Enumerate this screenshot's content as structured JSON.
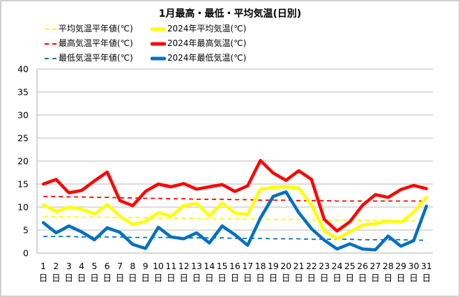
{
  "chart_data": {
    "type": "line",
    "title": "1月最高・最低・平均気温(日別)",
    "xlabel": "",
    "ylabel": "",
    "ylim": [
      0,
      40
    ],
    "yticks": [
      "0",
      "5",
      "10",
      "15",
      "20",
      "25",
      "30",
      "35",
      "40"
    ],
    "ytick_values": [
      0,
      5,
      10,
      15,
      20,
      25,
      30,
      35,
      40
    ],
    "grid": true,
    "legend_position": "top-left",
    "categories": [
      "1",
      "2",
      "3",
      "4",
      "5",
      "6",
      "7",
      "8",
      "9",
      "10",
      "11",
      "12",
      "13",
      "14",
      "15",
      "16",
      "17",
      "18",
      "19",
      "20",
      "21",
      "22",
      "23",
      "24",
      "25",
      "26",
      "27",
      "28",
      "29",
      "30",
      "31"
    ],
    "category_suffix": "日",
    "series": [
      {
        "name": "平均気温平年値(℃)",
        "style": "dashed",
        "color": "#FFFF00",
        "values": [
          7.9,
          7.9,
          7.9,
          7.8,
          7.8,
          7.8,
          7.7,
          7.7,
          7.7,
          7.6,
          7.6,
          7.6,
          7.5,
          7.5,
          7.5,
          7.4,
          7.4,
          7.4,
          7.3,
          7.3,
          7.3,
          7.2,
          7.2,
          7.2,
          7.1,
          7.1,
          7.1,
          7.1,
          7.0,
          7.0,
          7.0
        ]
      },
      {
        "name": "2024年平均気温(℃)",
        "style": "solid",
        "color": "#FFFF00",
        "values": [
          10.5,
          9.0,
          10.0,
          9.5,
          8.5,
          10.5,
          8.0,
          6.2,
          6.9,
          8.8,
          8.0,
          10.3,
          10.8,
          8.1,
          10.9,
          8.7,
          8.4,
          13.9,
          14.3,
          14.4,
          14.1,
          10.4,
          4.8,
          3.1,
          4.6,
          6.1,
          6.4,
          7.0,
          6.7,
          8.9,
          12.1
        ]
      },
      {
        "name": "最高気温平年値(℃)",
        "style": "dashed",
        "color": "#FF0000",
        "values": [
          12.3,
          12.3,
          12.2,
          12.2,
          12.1,
          12.1,
          12.0,
          12.0,
          11.9,
          11.9,
          11.8,
          11.8,
          11.7,
          11.7,
          11.7,
          11.6,
          11.6,
          11.5,
          11.5,
          11.5,
          11.4,
          11.4,
          11.4,
          11.3,
          11.3,
          11.3,
          11.3,
          11.3,
          11.3,
          11.3,
          11.3
        ]
      },
      {
        "name": "2024年最高気温(℃)",
        "style": "solid",
        "color": "#FF0000",
        "values": [
          15.0,
          16.0,
          13.1,
          13.6,
          15.7,
          17.6,
          11.4,
          10.3,
          13.4,
          15.0,
          14.4,
          15.1,
          13.9,
          14.4,
          14.9,
          13.4,
          14.6,
          20.1,
          17.4,
          15.8,
          17.9,
          16.0,
          7.3,
          4.8,
          6.8,
          10.4,
          12.7,
          12.1,
          13.8,
          14.7,
          14.0
        ]
      },
      {
        "name": "最低気温平年値(℃)",
        "style": "dashed",
        "color": "#0070C0",
        "values": [
          3.6,
          3.6,
          3.6,
          3.5,
          3.5,
          3.5,
          3.5,
          3.4,
          3.4,
          3.4,
          3.4,
          3.3,
          3.3,
          3.3,
          3.3,
          3.2,
          3.2,
          3.2,
          3.1,
          3.1,
          3.1,
          3.0,
          3.0,
          3.0,
          3.0,
          2.9,
          2.9,
          2.9,
          2.9,
          2.8,
          2.8
        ]
      },
      {
        "name": "2024年最低気温(℃)",
        "style": "solid",
        "color": "#0070C0",
        "values": [
          6.6,
          4.4,
          5.9,
          4.6,
          2.9,
          5.5,
          4.5,
          1.9,
          1.0,
          5.6,
          3.5,
          3.1,
          4.4,
          2.2,
          5.9,
          4.0,
          1.7,
          7.6,
          12.3,
          13.3,
          8.8,
          5.3,
          2.8,
          0.9,
          2.0,
          0.9,
          0.7,
          3.7,
          1.5,
          2.7,
          10.2
        ]
      }
    ]
  }
}
